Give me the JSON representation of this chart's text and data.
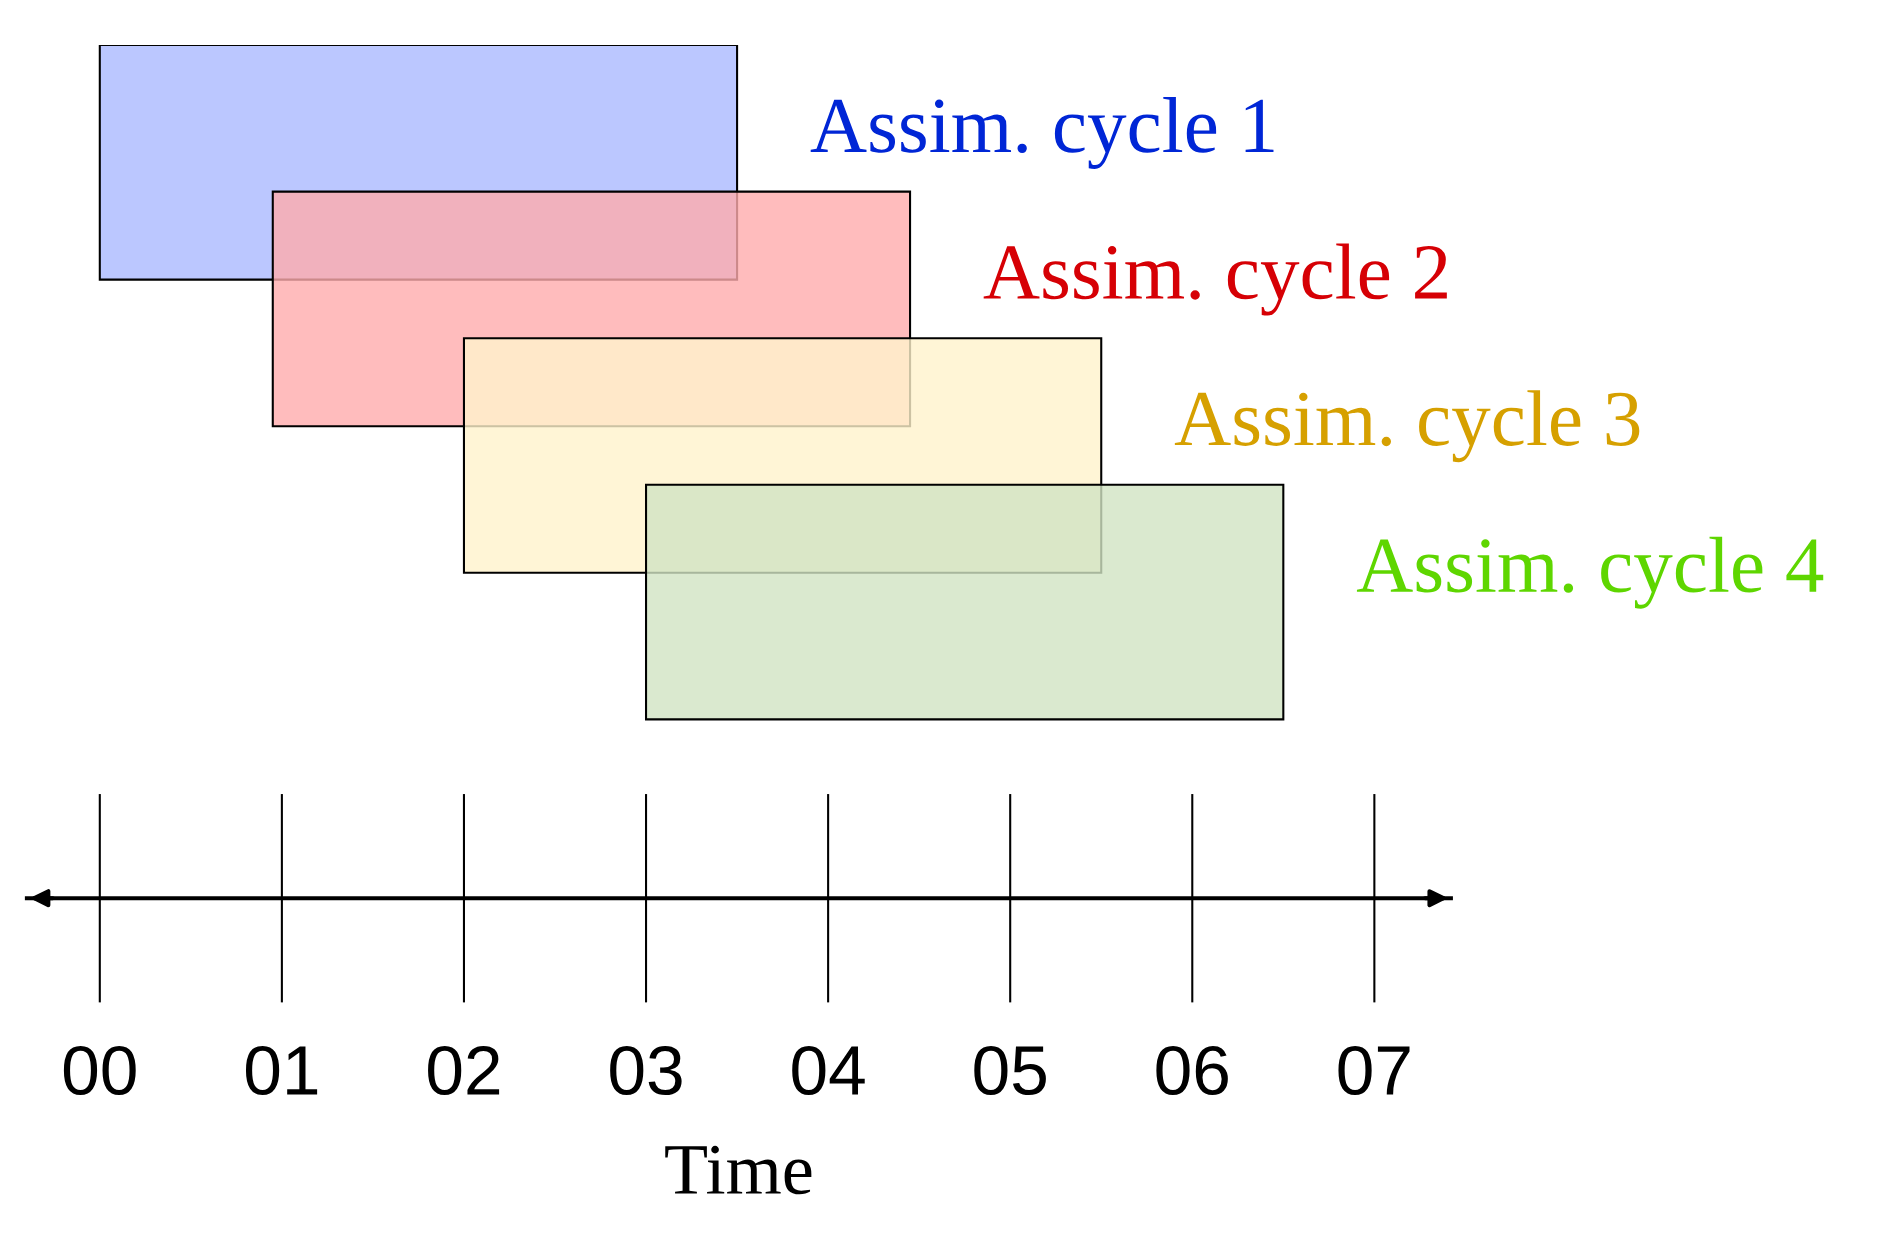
{
  "chart_data": {
    "type": "bar",
    "orientation": "horizontal",
    "xlabel": "Time",
    "categories": [
      "Assim. cycle 1",
      "Assim. cycle 2",
      "Assim. cycle 3",
      "Assim. cycle 4"
    ],
    "base": [
      0,
      0.95,
      2,
      3
    ],
    "values": [
      3.5,
      3.5,
      3.5,
      3.5
    ],
    "colors": [
      "#aab9ff",
      "#ffabad",
      "#fff2cc",
      "#d1e3c3"
    ],
    "xlim": [
      -0.4,
      7.42
    ],
    "xticks": [
      {
        "value": 0,
        "label": "00"
      },
      {
        "value": 1,
        "label": "01"
      },
      {
        "value": 2,
        "label": "02"
      },
      {
        "value": 3,
        "label": "03"
      },
      {
        "value": 4,
        "label": "04"
      },
      {
        "value": 5,
        "label": "05"
      },
      {
        "value": 6,
        "label": "06"
      },
      {
        "value": 7,
        "label": "07"
      }
    ],
    "grid": false,
    "legend": false
  }
}
